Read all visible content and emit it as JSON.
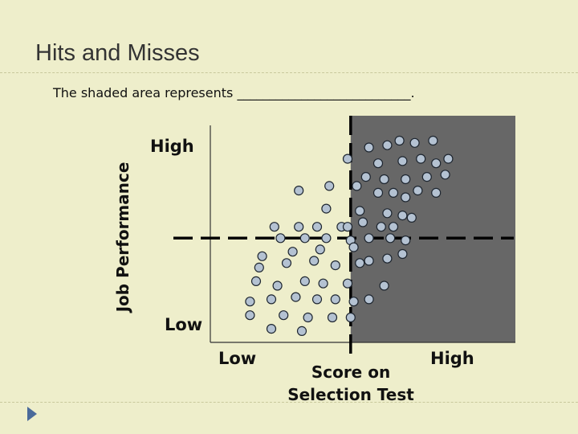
{
  "slide": {
    "title": "Hits and Misses",
    "subtitle": "The shaded area represents ___________________________."
  },
  "colors": {
    "background": "#eeeecb",
    "shaded_region": "#676767",
    "dot_fill": "#b4c2d2",
    "dot_stroke": "#1e2630",
    "cutoff_line": "#000000",
    "bullet": "#4a6a9a"
  },
  "chart_data": {
    "type": "scatter",
    "xlabel": "Score on Selection Test",
    "ylabel": "Job Performance",
    "x_tick_labels": [
      "Low",
      "High"
    ],
    "y_tick_labels": [
      "Low",
      "High"
    ],
    "xlim": [
      0,
      100
    ],
    "ylim": [
      0,
      100
    ],
    "cutoffs": {
      "selection_score": 46,
      "job_performance": 46
    },
    "shaded_region": {
      "x_min": 46,
      "x_max": 100,
      "y_min": 0,
      "y_max": 100
    },
    "points": [
      [
        67,
        88
      ],
      [
        73,
        89
      ],
      [
        52,
        86
      ],
      [
        58,
        87
      ],
      [
        62,
        89
      ],
      [
        45,
        81
      ],
      [
        55,
        79
      ],
      [
        63,
        80
      ],
      [
        69,
        81
      ],
      [
        74,
        79
      ],
      [
        78,
        81
      ],
      [
        51,
        73
      ],
      [
        57,
        72
      ],
      [
        64,
        72
      ],
      [
        71,
        73
      ],
      [
        77,
        74
      ],
      [
        39,
        69
      ],
      [
        48,
        69
      ],
      [
        55,
        66
      ],
      [
        60,
        66
      ],
      [
        64,
        64
      ],
      [
        68,
        67
      ],
      [
        74,
        66
      ],
      [
        29,
        67
      ],
      [
        38,
        59
      ],
      [
        49,
        58
      ],
      [
        58,
        57
      ],
      [
        63,
        56
      ],
      [
        50,
        53
      ],
      [
        56,
        51
      ],
      [
        60,
        51
      ],
      [
        66,
        55
      ],
      [
        21,
        51
      ],
      [
        29,
        51
      ],
      [
        35,
        51
      ],
      [
        43,
        51
      ],
      [
        45,
        51
      ],
      [
        23,
        46
      ],
      [
        31,
        46
      ],
      [
        38,
        46
      ],
      [
        46,
        45
      ],
      [
        52,
        46
      ],
      [
        59,
        46
      ],
      [
        64,
        45
      ],
      [
        17,
        38
      ],
      [
        27,
        40
      ],
      [
        36,
        41
      ],
      [
        47,
        42
      ],
      [
        52,
        36
      ],
      [
        58,
        37
      ],
      [
        63,
        39
      ],
      [
        16,
        33
      ],
      [
        25,
        35
      ],
      [
        34,
        36
      ],
      [
        41,
        34
      ],
      [
        49,
        35
      ],
      [
        15,
        27
      ],
      [
        22,
        25
      ],
      [
        31,
        27
      ],
      [
        37,
        26
      ],
      [
        45,
        26
      ],
      [
        57,
        25
      ],
      [
        13,
        18
      ],
      [
        20,
        19
      ],
      [
        28,
        20
      ],
      [
        35,
        19
      ],
      [
        41,
        19
      ],
      [
        47,
        18
      ],
      [
        52,
        19
      ],
      [
        13,
        12
      ],
      [
        24,
        12
      ],
      [
        32,
        11
      ],
      [
        40,
        11
      ],
      [
        46,
        11
      ],
      [
        20,
        6
      ],
      [
        30,
        5
      ]
    ]
  }
}
